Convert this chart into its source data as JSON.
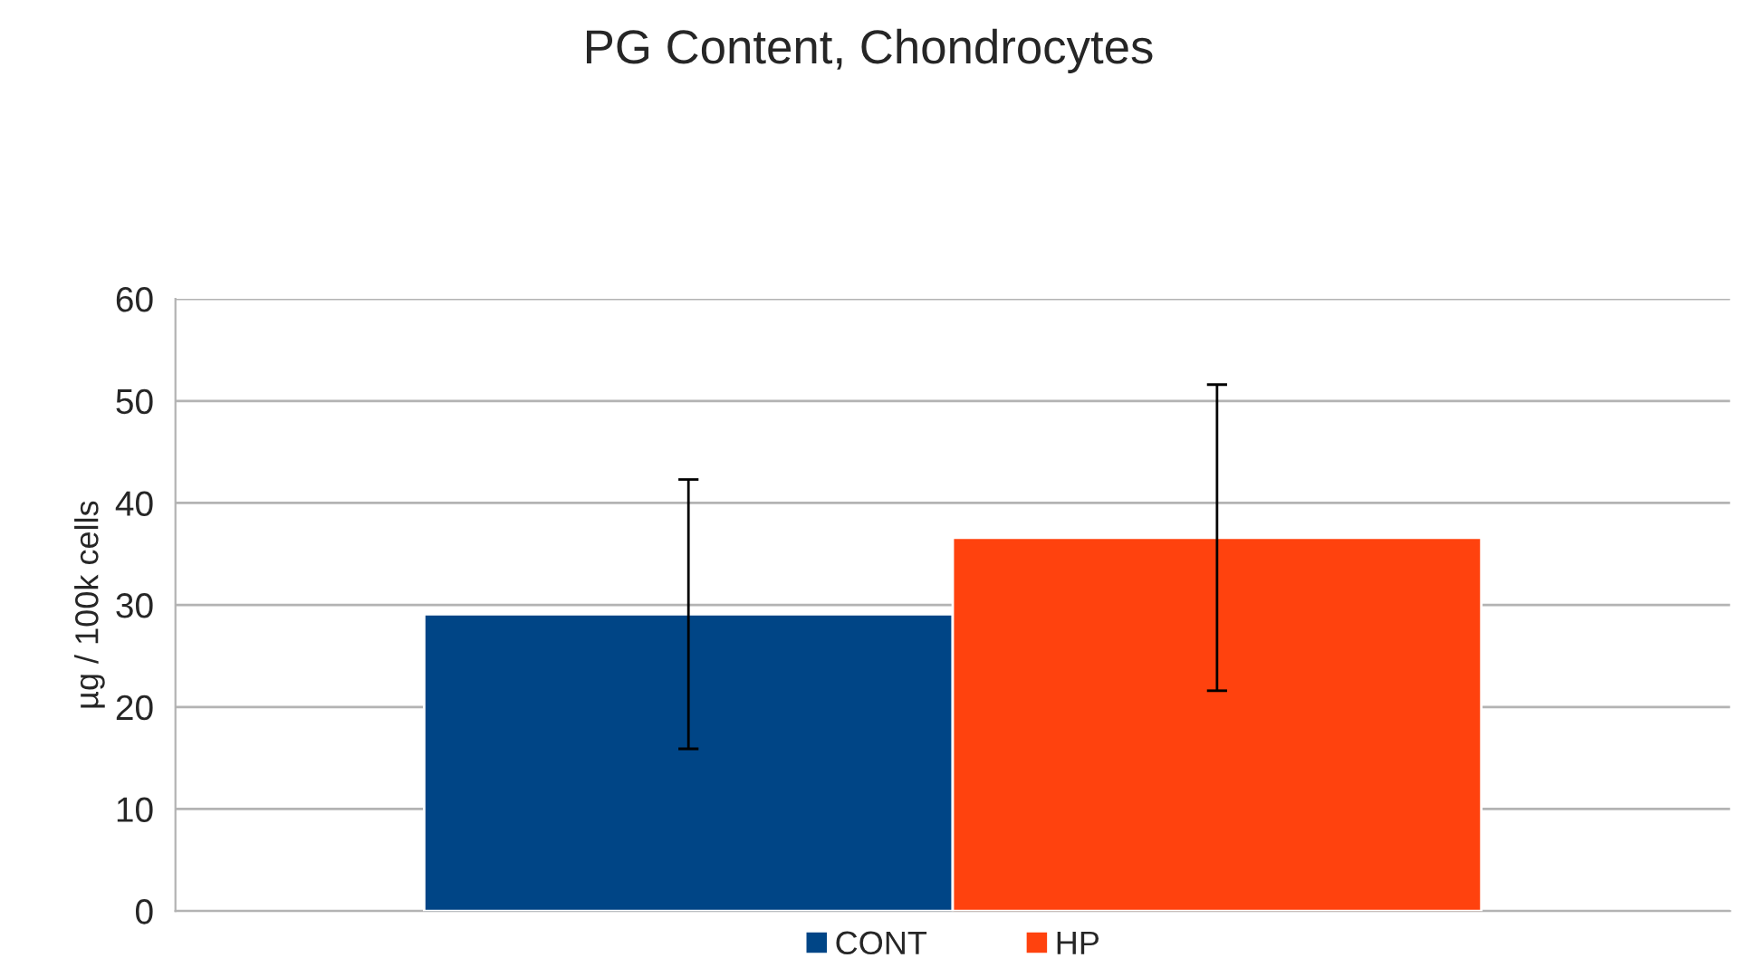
{
  "chart_data": {
    "type": "bar",
    "title": "PG Content, Chondrocytes",
    "ylabel": "µg / 100k cells",
    "categories": [
      null
    ],
    "series": [
      {
        "name": "CONT",
        "color": "#004586",
        "values": [
          29.1
        ],
        "errors": [
          13.2
        ]
      },
      {
        "name": "HP",
        "color": "#ff420e",
        "values": [
          36.6
        ],
        "errors": [
          15.0
        ]
      }
    ],
    "ylim": [
      0,
      60
    ],
    "yticks": [
      0,
      10,
      20,
      30,
      40,
      50,
      60
    ],
    "grid": "y",
    "legend": "bottom"
  }
}
